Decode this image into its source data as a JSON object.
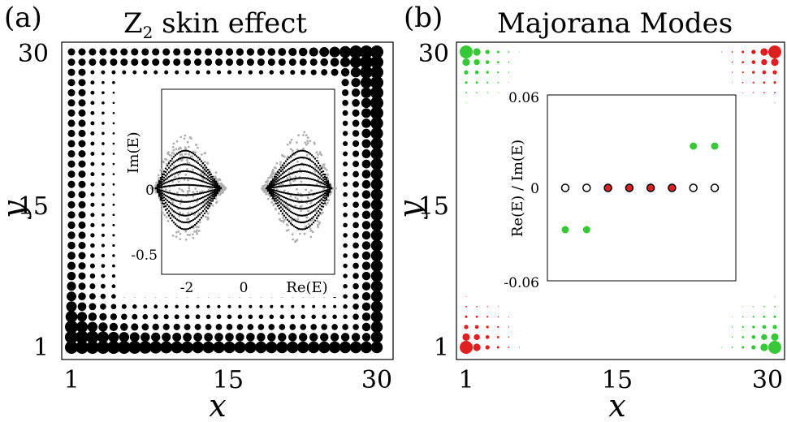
{
  "chart_data": [
    {
      "panel_label": "(a)",
      "title_main": "Z",
      "title_sub": "2",
      "title_rest": " skin effect",
      "type": "scatter",
      "xlabel": "x",
      "ylabel": "y",
      "xlim": [
        1,
        30
      ],
      "ylim": [
        1,
        30
      ],
      "xticks": [
        "1",
        "15",
        "30"
      ],
      "yticks": [
        "1",
        "15",
        "30"
      ],
      "grid": false,
      "lattice_size": 30,
      "marker_color": "#000000",
      "description_of_values": "site marker size ∝ wavefunction amplitude; largest along bottom row and right column, skin corner at (1,1) and (30,30)",
      "inset": {
        "type": "scatter",
        "xlabel": "Re(E)",
        "ylabel": "Im(E)",
        "xticks": [
          "-2",
          "0"
        ],
        "yticks": [
          "0",
          "-0.5"
        ],
        "series": [
          {
            "color": "#b0b0b0"
          },
          {
            "color": "#000000"
          }
        ]
      }
    },
    {
      "panel_label": "(b)",
      "title": "Majorana Modes",
      "type": "scatter",
      "xlabel": "x",
      "ylabel": "y",
      "xlim": [
        1,
        30
      ],
      "ylim": [
        1,
        30
      ],
      "xticks": [
        "1",
        "15",
        "30"
      ],
      "yticks": [
        "1",
        "15",
        "30"
      ],
      "grid": false,
      "lattice_size": 30,
      "series": [
        {
          "color": "#37c837",
          "corners": [
            "top-left",
            "bottom-right"
          ]
        },
        {
          "color": "#e02020",
          "corners": [
            "top-right",
            "bottom-left"
          ]
        }
      ],
      "inset": {
        "type": "scatter",
        "ylabel": "Re(E) / Im(E)",
        "yticks": [
          "0.06",
          "0",
          "-0.06"
        ],
        "ylim": [
          -0.06,
          0.06
        ],
        "points": [
          {
            "n": 1,
            "value": 0,
            "style": "open"
          },
          {
            "n": 2,
            "value": 0,
            "style": "open"
          },
          {
            "n": 3,
            "value": 0,
            "style": "red"
          },
          {
            "n": 4,
            "value": 0,
            "style": "red"
          },
          {
            "n": 5,
            "value": 0,
            "style": "red"
          },
          {
            "n": 6,
            "value": 0,
            "style": "red"
          },
          {
            "n": 7,
            "value": 0,
            "style": "open"
          },
          {
            "n": 8,
            "value": 0,
            "style": "open"
          },
          {
            "n": 1,
            "value": -0.027,
            "style": "green"
          },
          {
            "n": 2,
            "value": -0.027,
            "style": "green"
          },
          {
            "n": 7,
            "value": 0.027,
            "style": "green"
          },
          {
            "n": 8,
            "value": 0.027,
            "style": "green"
          }
        ],
        "colors": {
          "red": "#e02020",
          "green": "#37c837",
          "open": "#000000"
        }
      }
    }
  ]
}
